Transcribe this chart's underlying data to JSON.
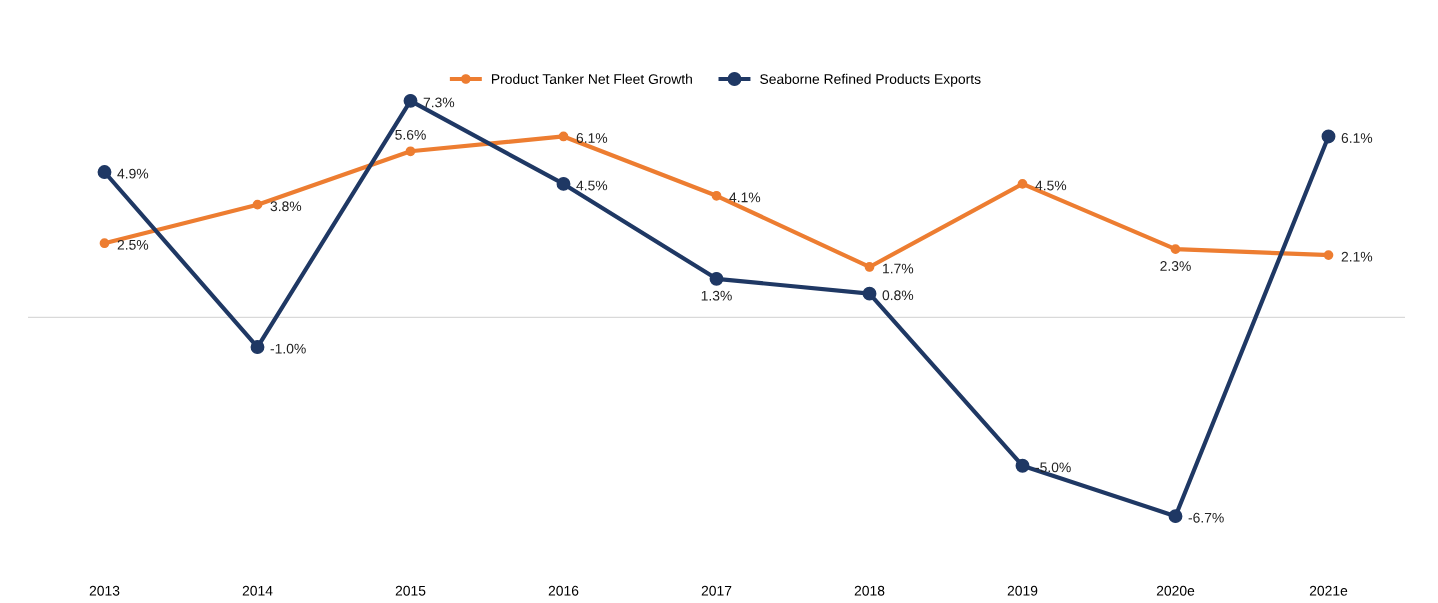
{
  "chart_data": {
    "type": "line",
    "categories": [
      "2013",
      "2014",
      "2015",
      "2016",
      "2017",
      "2018",
      "2019",
      "2020e",
      "2021e"
    ],
    "series": [
      {
        "name": "Product Tanker Net Fleet Growth",
        "color": "#ed7d31",
        "values": [
          2.5,
          3.8,
          5.6,
          6.1,
          4.1,
          1.7,
          4.5,
          2.3,
          2.1
        ],
        "value_labels": [
          "2.5%",
          "3.8%",
          "5.6%",
          "6.1%",
          "4.1%",
          "1.7%",
          "4.5%",
          "2.3%",
          "2.1%"
        ]
      },
      {
        "name": "Seaborne Refined Products Exports",
        "color": "#1f3864",
        "values": [
          4.9,
          -1.0,
          7.3,
          4.5,
          1.3,
          0.8,
          -5.0,
          -6.7,
          6.1
        ],
        "value_labels": [
          "4.9%",
          "-1.0%",
          "7.3%",
          "4.5%",
          "1.3%",
          "0.8%",
          "-5.0%",
          "-6.7%",
          "6.1%"
        ]
      }
    ],
    "tick_labels": "x",
    "grid": false,
    "legend": "top",
    "marker": "circle",
    "line_style": "solid",
    "ref_lines": [
      {
        "axis": "y",
        "value": 0,
        "color": "#d9d9d9"
      }
    ]
  }
}
